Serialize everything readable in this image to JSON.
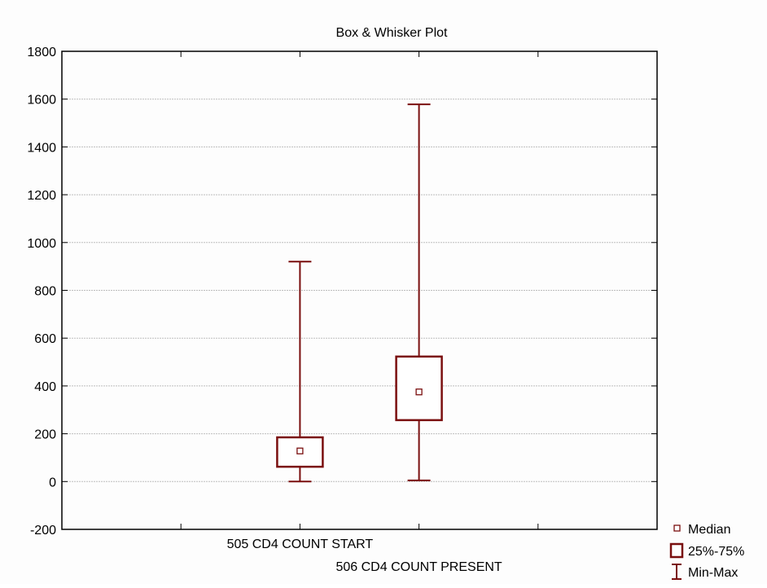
{
  "chart_data": {
    "type": "box",
    "title": "Box & Whisker Plot",
    "xlabel": "",
    "ylabel": "",
    "ylim": [
      -200,
      1800
    ],
    "yticks": [
      -200,
      0,
      200,
      400,
      600,
      800,
      1000,
      1200,
      1400,
      1600,
      1800
    ],
    "grid": true,
    "categories": [
      "505  CD4 COUNT START",
      "506  CD4 COUNT PRESENT"
    ],
    "series": [
      {
        "category": "505  CD4 COUNT START",
        "min": 0,
        "q1": 62,
        "median": 128,
        "q3": 185,
        "max": 920
      },
      {
        "category": "506  CD4 COUNT PRESENT",
        "min": 5,
        "q1": 257,
        "median": 375,
        "q3": 523,
        "max": 1578
      }
    ],
    "legend": {
      "position": "bottom-right",
      "items": [
        {
          "label": "Median",
          "symbol": "median-square"
        },
        {
          "label": "25%-75%",
          "symbol": "box"
        },
        {
          "label": "Min-Max",
          "symbol": "whisker"
        }
      ]
    },
    "colors": {
      "box": "#7a0f0f",
      "grid": "#bdbdbd",
      "axis": "#000000"
    }
  }
}
